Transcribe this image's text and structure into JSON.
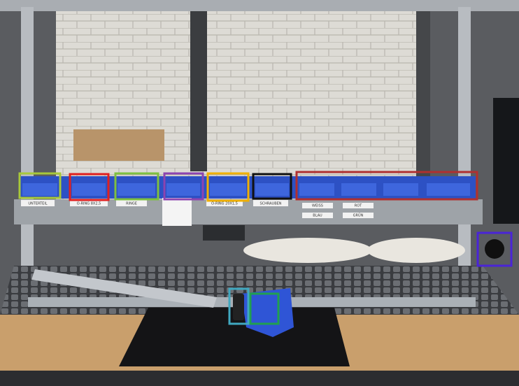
{
  "bin_labels": [
    "UNTERTEIL",
    "O-RING 8X2,5",
    "RINGE",
    "O-RING 20X1,5",
    "SCHRAUBEN",
    "WEISS",
    "ROT",
    "BLAU",
    "GRÜN"
  ]
}
